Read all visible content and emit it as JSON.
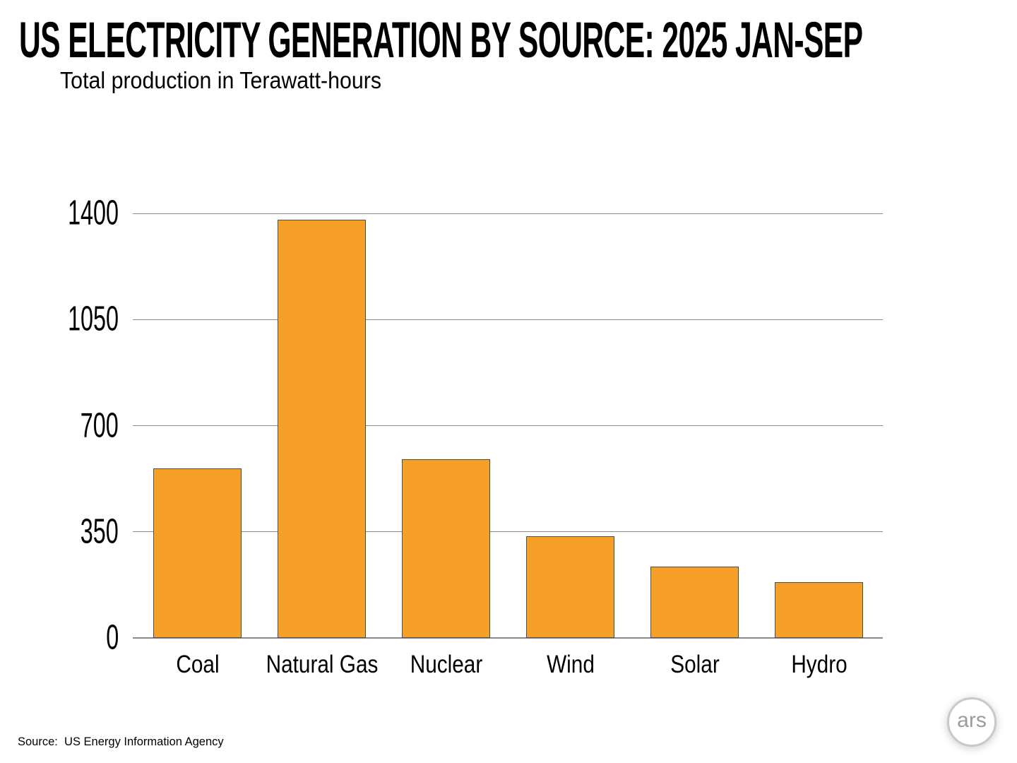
{
  "header": {
    "title": "US ELECTRICITY GENERATION BY SOURCE: 2025 JAN-SEP",
    "subtitle": "Total production in Terawatt-hours"
  },
  "footer": {
    "source": "Source:  US Energy Information Agency",
    "logo_text": "ars"
  },
  "colors": {
    "bar_fill": "#F7A029",
    "bar_border": "#4F4F4F",
    "gridline": "#8A8A8A",
    "baseline": "#8A8A8A",
    "text": "#000000",
    "logo_ring": "#C9C9C9",
    "logo_text": "#9B9B9B"
  },
  "chart_data": {
    "type": "bar",
    "title": "US ELECTRICITY GENERATION BY SOURCE: 2025 JAN-SEP",
    "subtitle": "Total production in Terawatt-hours",
    "categories": [
      "Coal",
      "Natural Gas",
      "Nuclear",
      "Wind",
      "Solar",
      "Hydro"
    ],
    "values": [
      560,
      1380,
      590,
      335,
      235,
      185
    ],
    "unit": "Terawatt-hours",
    "xlabel": "",
    "ylabel": "Total production in Terawatt-hours",
    "ylim": [
      0,
      1400
    ],
    "yticks": [
      0,
      350,
      700,
      1050,
      1400
    ],
    "grid": true,
    "legend": false,
    "bar_color": "#F7A029",
    "source": "US Energy Information Agency"
  }
}
